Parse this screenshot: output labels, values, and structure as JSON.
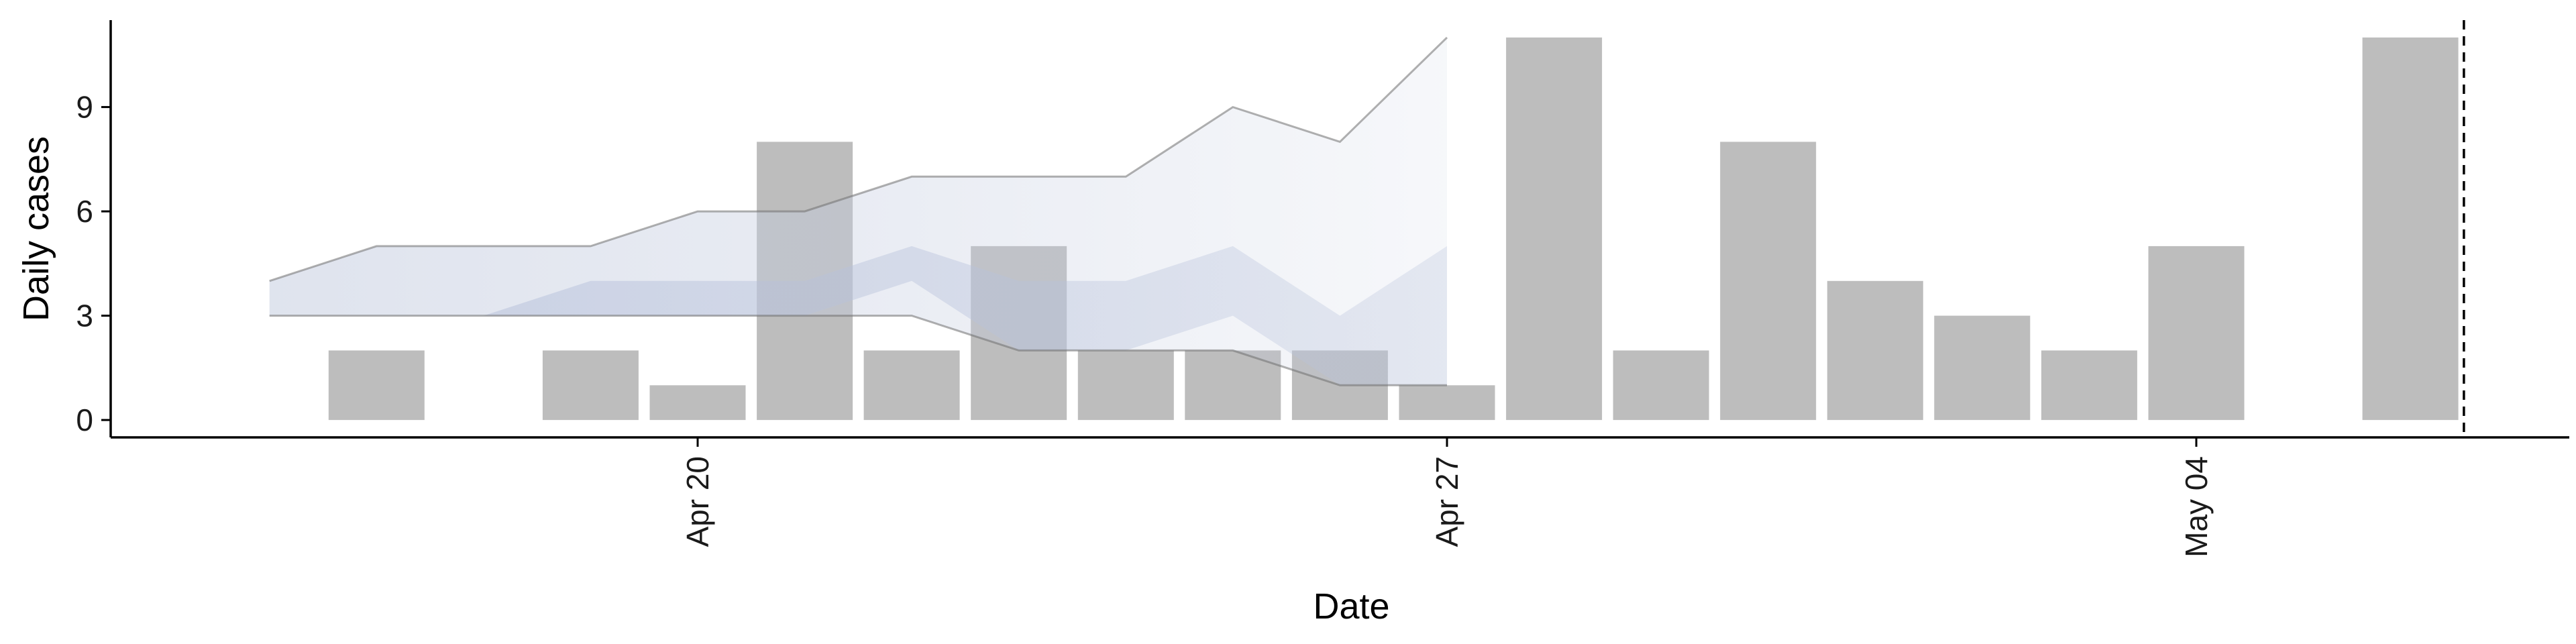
{
  "chart_data": {
    "type": "bar",
    "title": "",
    "xlabel": "Date",
    "ylabel": "Daily cases",
    "x_ticks": [
      {
        "date": "2020-04-20",
        "label": "Apr 20"
      },
      {
        "date": "2020-04-27",
        "label": "Apr 27"
      },
      {
        "date": "2020-05-04",
        "label": "May 04"
      }
    ],
    "y_ticks": [
      0,
      3,
      6,
      9
    ],
    "ylim": [
      -0.5,
      11.5
    ],
    "xlim": [
      "2020-04-14",
      "2020-05-08"
    ],
    "bars": [
      {
        "date": "2020-04-17",
        "value": 2
      },
      {
        "date": "2020-04-18",
        "value": 0
      },
      {
        "date": "2020-04-19",
        "value": 2
      },
      {
        "date": "2020-04-20",
        "value": 1
      },
      {
        "date": "2020-04-21",
        "value": 8
      },
      {
        "date": "2020-04-22",
        "value": 2
      },
      {
        "date": "2020-04-23",
        "value": 5
      },
      {
        "date": "2020-04-24",
        "value": 2
      },
      {
        "date": "2020-04-25",
        "value": 2
      },
      {
        "date": "2020-04-26",
        "value": 2
      },
      {
        "date": "2020-04-27",
        "value": 1
      },
      {
        "date": "2020-04-28",
        "value": 11
      },
      {
        "date": "2020-04-29",
        "value": 2
      },
      {
        "date": "2020-04-30",
        "value": 8
      },
      {
        "date": "2020-05-01",
        "value": 4
      },
      {
        "date": "2020-05-02",
        "value": 3
      },
      {
        "date": "2020-05-03",
        "value": 2
      },
      {
        "date": "2020-05-04",
        "value": 5
      },
      {
        "date": "2020-05-05",
        "value": 0
      },
      {
        "date": "2020-05-06",
        "value": 11
      }
    ],
    "outer_band": [
      {
        "date": "2020-04-16",
        "low": 3,
        "high": 4
      },
      {
        "date": "2020-04-17",
        "low": 3,
        "high": 5
      },
      {
        "date": "2020-04-18",
        "low": 3,
        "high": 5
      },
      {
        "date": "2020-04-19",
        "low": 3,
        "high": 5
      },
      {
        "date": "2020-04-20",
        "low": 3,
        "high": 6
      },
      {
        "date": "2020-04-21",
        "low": 3,
        "high": 6
      },
      {
        "date": "2020-04-22",
        "low": 3,
        "high": 7
      },
      {
        "date": "2020-04-23",
        "low": 2,
        "high": 7
      },
      {
        "date": "2020-04-24",
        "low": 2,
        "high": 7
      },
      {
        "date": "2020-04-25",
        "low": 2,
        "high": 9
      },
      {
        "date": "2020-04-26",
        "low": 1,
        "high": 8
      },
      {
        "date": "2020-04-27",
        "low": 1,
        "high": 11
      }
    ],
    "inner_band": [
      {
        "date": "2020-04-18",
        "low": 3,
        "high": 3
      },
      {
        "date": "2020-04-19",
        "low": 3,
        "high": 4
      },
      {
        "date": "2020-04-20",
        "low": 3,
        "high": 4
      },
      {
        "date": "2020-04-21",
        "low": 3,
        "high": 4
      },
      {
        "date": "2020-04-22",
        "low": 4,
        "high": 5
      },
      {
        "date": "2020-04-23",
        "low": 2,
        "high": 4
      },
      {
        "date": "2020-04-24",
        "low": 2,
        "high": 4
      },
      {
        "date": "2020-04-25",
        "low": 3,
        "high": 5
      },
      {
        "date": "2020-04-26",
        "low": 1,
        "high": 3
      },
      {
        "date": "2020-04-27",
        "low": 1,
        "high": 5
      }
    ],
    "vline_date": "2020-05-06.5",
    "grid": false,
    "legend": "none",
    "colors": {
      "bar": "#bdbdbd",
      "band": "#c5cde0",
      "band_edge": "#707070",
      "axis": "#000000",
      "vline": "#000000"
    }
  }
}
